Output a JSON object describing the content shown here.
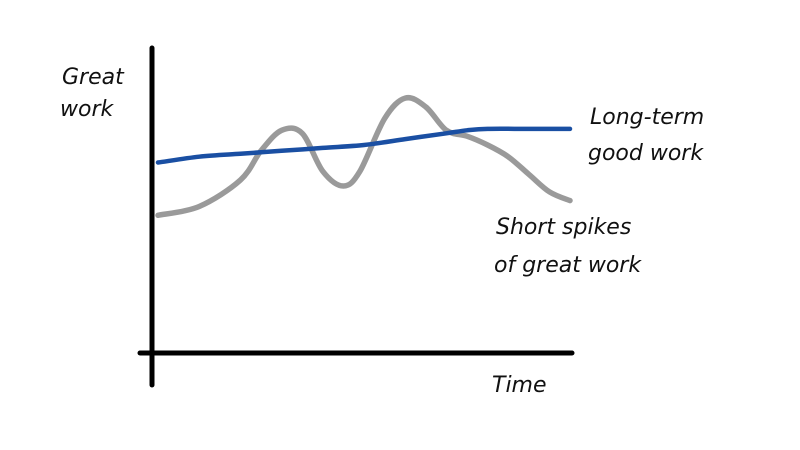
{
  "chart_data": {
    "type": "line",
    "title": "",
    "xlabel": "Time",
    "ylabel_lines": [
      "Great",
      "work"
    ],
    "xlim": [
      0,
      100
    ],
    "ylim": [
      0,
      100
    ],
    "grid": false,
    "legend": "inline-right",
    "series": [
      {
        "name_lines": [
          "Long-term",
          "good work"
        ],
        "color": "#1a4fa3",
        "x": [
          0,
          10,
          20,
          30,
          40,
          50,
          60,
          70,
          75,
          80,
          90,
          100
        ],
        "y": [
          65,
          67,
          68,
          69,
          70,
          71,
          73,
          75,
          76,
          76.5,
          76.5,
          76.5
        ]
      },
      {
        "name_lines": [
          "Short spikes",
          "of great work"
        ],
        "color": "#9a9a9a",
        "x": [
          0,
          10,
          20,
          25,
          30,
          35,
          40,
          45,
          49,
          55,
          60,
          65,
          70,
          75,
          80,
          85,
          90,
          95,
          100
        ],
        "y": [
          47,
          50,
          59,
          69,
          76,
          75,
          62,
          57,
          62,
          80,
          87,
          84,
          76,
          74,
          71,
          67,
          61,
          55,
          52
        ]
      }
    ]
  }
}
